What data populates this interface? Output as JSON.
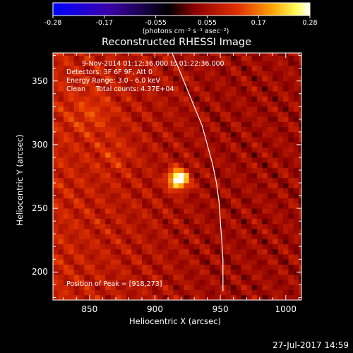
{
  "chart_data": {
    "type": "heatmap",
    "title": "Reconstructed RHESSI Image",
    "xlabel": "Heliocentric X (arcsec)",
    "ylabel": "Heliocentric Y (arcsec)",
    "xlim": [
      822,
      1012
    ],
    "ylim": [
      178,
      372
    ],
    "x_ticks": [
      850,
      900,
      950,
      1000
    ],
    "y_ticks": [
      200,
      250,
      300,
      350
    ],
    "colorbar": {
      "range": [
        -0.28,
        0.28
      ],
      "ticks": [
        "-0.28",
        "-0.17",
        "-0.055",
        "0.055",
        "0.17",
        "0.28"
      ],
      "label": "(photons cm⁻² s⁻¹ asec⁻²)",
      "colors": [
        "#0000ff",
        "#3a00a8",
        "#000000",
        "#8a0000",
        "#e03000",
        "#ffa000",
        "#ffff60",
        "#ffffff"
      ]
    },
    "info_lines": [
      "9-Nov-2014 01:12:36.000 to 01:22:36.000",
      "Detectors: 3F 6F 9F, Att 0",
      "Energy Range: 3.0 - 6.0 keV",
      "Clean     Total counts: 4.37E+04"
    ],
    "peak_label": "Position of Peak = [918,273]",
    "peak": {
      "x": 918,
      "y": 273,
      "value": 0.28
    },
    "limb_curve": [
      [
        913,
        372
      ],
      [
        918,
        360
      ],
      [
        924,
        345
      ],
      [
        930,
        330
      ],
      [
        936,
        315
      ],
      [
        940,
        300
      ],
      [
        944,
        285
      ],
      [
        947,
        270
      ],
      [
        949,
        255
      ],
      [
        950,
        240
      ],
      [
        951,
        225
      ],
      [
        952,
        210
      ],
      [
        952,
        195
      ],
      [
        952,
        185
      ]
    ]
  },
  "footer": {
    "datestamp": "27-Jul-2017 14:59"
  }
}
